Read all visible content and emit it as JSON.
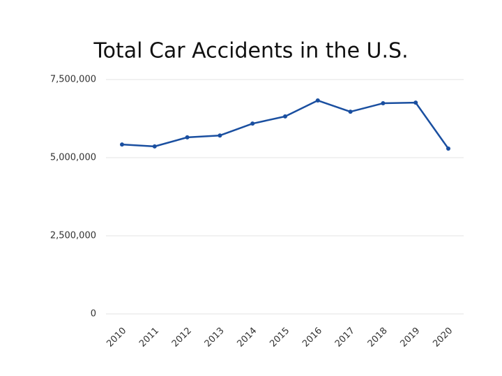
{
  "chart_data": {
    "type": "line",
    "title": "Total Car Accidents in the U.S.",
    "categories": [
      "2010",
      "2011",
      "2012",
      "2013",
      "2014",
      "2015",
      "2016",
      "2017",
      "2018",
      "2019",
      "2020"
    ],
    "series": [
      {
        "name": "Total Car Accidents",
        "color": "#1a4fa0",
        "values": [
          5420000,
          5360000,
          5650000,
          5710000,
          6090000,
          6320000,
          6830000,
          6470000,
          6740000,
          6760000,
          5290000
        ]
      }
    ],
    "ylim": [
      0,
      7500000
    ],
    "yticks": [
      0,
      {
        "value": 2500000,
        "label": "2,500,000"
      },
      {
        "value": 5000000,
        "label": "5,000,000"
      },
      {
        "value": 7500000,
        "label": "7,500,000"
      }
    ],
    "grid": true
  }
}
